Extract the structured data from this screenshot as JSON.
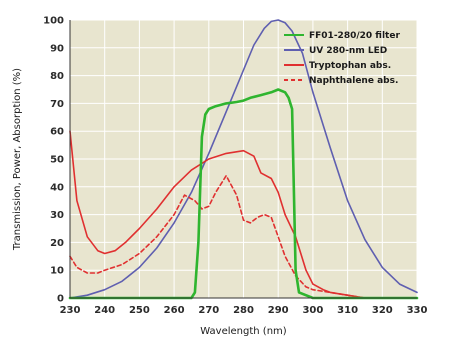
{
  "chart_data": {
    "type": "line",
    "xlabel": "Wavelength (nm)",
    "ylabel": "Transmission, Power, Absorption (%)",
    "xlim": [
      230,
      330
    ],
    "ylim": [
      0,
      100
    ],
    "xticks": [
      230,
      240,
      250,
      260,
      270,
      280,
      290,
      300,
      310,
      320,
      330
    ],
    "yticks": [
      0,
      10,
      20,
      30,
      40,
      50,
      60,
      70,
      80,
      90,
      100
    ],
    "grid": true,
    "legend_position": "top-right",
    "background": "#e8e5cf",
    "series": [
      {
        "name": "FF01-280/20 filter",
        "color": "#2fb52f",
        "style": "solid",
        "x": [
          230,
          240,
          250,
          260,
          265,
          266,
          267,
          268,
          269,
          270,
          272,
          275,
          278,
          280,
          282,
          285,
          288,
          290,
          292,
          293,
          294,
          294.5,
          295,
          296,
          300,
          310,
          320,
          330
        ],
        "y": [
          0,
          0,
          0,
          0,
          0,
          2,
          20,
          58,
          66,
          68,
          69,
          70,
          70.5,
          71,
          72,
          73,
          74,
          75,
          74,
          72,
          68,
          40,
          10,
          2,
          0,
          0,
          0,
          0
        ]
      },
      {
        "name": "UV 280-nm LED",
        "color": "#5f5fb0",
        "style": "solid",
        "x": [
          230,
          235,
          240,
          245,
          250,
          255,
          260,
          265,
          270,
          275,
          280,
          283,
          286,
          288,
          290,
          292,
          294,
          297,
          300,
          305,
          310,
          315,
          320,
          325,
          330
        ],
        "y": [
          0,
          1,
          3,
          6,
          11,
          18,
          27,
          38,
          52,
          67,
          82,
          91,
          97,
          99.5,
          100,
          99,
          96,
          88,
          74,
          54,
          35,
          21,
          11,
          5,
          2
        ]
      },
      {
        "name": "Tryptophan abs.",
        "color": "#e03030",
        "style": "solid",
        "x": [
          230,
          232,
          235,
          238,
          240,
          243,
          246,
          250,
          255,
          260,
          265,
          270,
          275,
          280,
          283,
          285,
          288,
          290,
          292,
          295,
          298,
          300,
          303,
          305,
          310,
          315
        ],
        "y": [
          60,
          35,
          22,
          17,
          16,
          17,
          20,
          25,
          32,
          40,
          46,
          50,
          52,
          53,
          51,
          45,
          43,
          38,
          30,
          22,
          10,
          5,
          3,
          2,
          1,
          0
        ]
      },
      {
        "name": "Naphthalene abs.",
        "color": "#e03030",
        "style": "dashed",
        "x": [
          230,
          232,
          235,
          238,
          240,
          245,
          250,
          255,
          260,
          263,
          266,
          268,
          270,
          272,
          275,
          278,
          280,
          282,
          284,
          286,
          288,
          290,
          292,
          295,
          298,
          300,
          305,
          310,
          315
        ],
        "y": [
          15,
          11,
          9,
          9,
          10,
          12,
          16,
          22,
          30,
          37,
          35,
          32,
          33,
          38,
          44,
          37,
          28,
          27,
          29,
          30,
          29,
          22,
          15,
          8,
          4,
          3,
          2,
          1,
          0
        ]
      }
    ]
  }
}
